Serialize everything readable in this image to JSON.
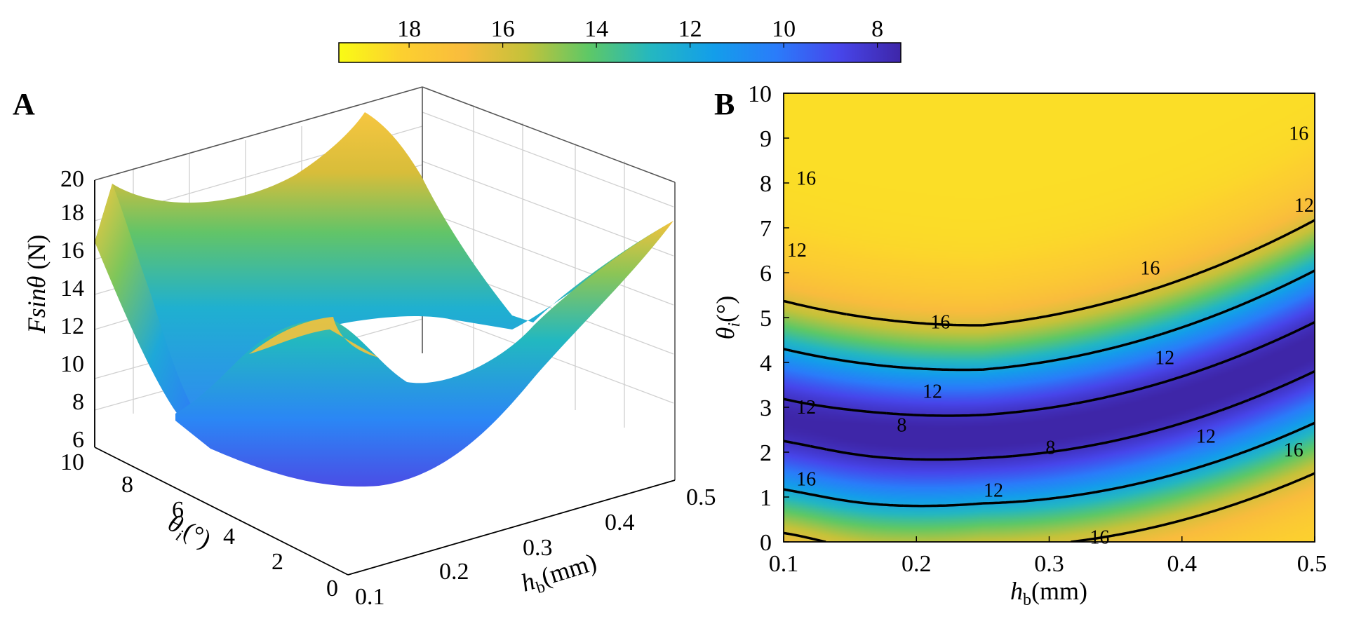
{
  "chart_data": [
    {
      "type": "colorbar",
      "ticks": [
        "18",
        "16",
        "14",
        "12",
        "10",
        "8"
      ],
      "tick_values": [
        18,
        16,
        14,
        12,
        10,
        8
      ],
      "range": [
        7.5,
        19.5
      ],
      "colormap": [
        "#3e26a8",
        "#4746eb",
        "#2a7cfa",
        "#139eea",
        "#24b7c1",
        "#5ec866",
        "#c4c23a",
        "#f9bc3d",
        "#fcd02f",
        "#f9fb15"
      ]
    },
    {
      "type": "surface3d",
      "panel_label": "A",
      "zlabel_italic": "Fsinθ",
      "zlabel_unit": " (N)",
      "ylabel_symbol": "θ",
      "ylabel_sub": "i",
      "ylabel_unit": "(°)",
      "xlabel_symbol": "h",
      "xlabel_sub": "b",
      "xlabel_unit": "(mm)",
      "zticks": [
        "6",
        "8",
        "10",
        "12",
        "14",
        "16",
        "18",
        "20"
      ],
      "ytick_labels": [
        "0",
        "2",
        "4",
        "6",
        "8",
        "10"
      ],
      "xtick_labels": [
        "0.1",
        "0.2",
        "0.3",
        "0.4",
        "0.5"
      ],
      "xlim": [
        0.1,
        0.5
      ],
      "ylim": [
        0,
        10
      ],
      "zlim": [
        6,
        20
      ]
    },
    {
      "type": "contour",
      "panel_label": "B",
      "ylabel_symbol": "θ",
      "ylabel_sub": "i",
      "ylabel_unit": "(°)",
      "xlabel_symbol": "h",
      "xlabel_sub": "b",
      "xlabel_unit": "(mm)",
      "xtick_labels": [
        "0.1",
        "0.2",
        "0.3",
        "0.4",
        "0.5"
      ],
      "ytick_labels": [
        "0",
        "1",
        "2",
        "3",
        "4",
        "5",
        "6",
        "7",
        "8",
        "9",
        "10"
      ],
      "xlim": [
        0.1,
        0.5
      ],
      "ylim": [
        0,
        10
      ],
      "contour_levels": [
        16,
        12,
        8
      ],
      "contour_labels": [
        {
          "text": "16",
          "x": 0.117,
          "y": 8.1
        },
        {
          "text": "16",
          "x": 0.218,
          "y": 4.9
        },
        {
          "text": "16",
          "x": 0.376,
          "y": 6.1
        },
        {
          "text": "16",
          "x": 0.488,
          "y": 9.1
        },
        {
          "text": "12",
          "x": 0.11,
          "y": 6.5
        },
        {
          "text": "12",
          "x": 0.212,
          "y": 3.35
        },
        {
          "text": "12",
          "x": 0.387,
          "y": 4.1
        },
        {
          "text": "12",
          "x": 0.492,
          "y": 7.5
        },
        {
          "text": "12",
          "x": 0.117,
          "y": 3.0
        },
        {
          "text": "12",
          "x": 0.258,
          "y": 1.15
        },
        {
          "text": "12",
          "x": 0.418,
          "y": 2.35
        },
        {
          "text": "8",
          "x": 0.189,
          "y": 2.6
        },
        {
          "text": "8",
          "x": 0.301,
          "y": 2.1
        },
        {
          "text": "16",
          "x": 0.117,
          "y": 1.4
        },
        {
          "text": "16",
          "x": 0.338,
          "y": 0.1
        },
        {
          "text": "16",
          "x": 0.484,
          "y": 2.05
        }
      ]
    }
  ]
}
